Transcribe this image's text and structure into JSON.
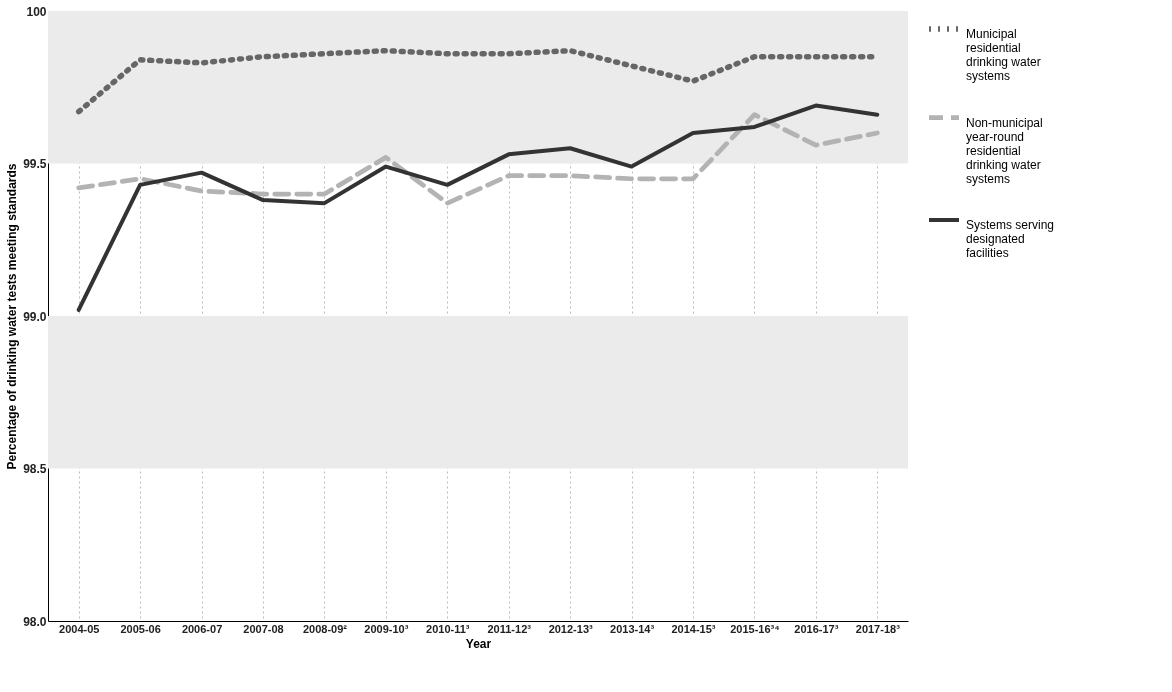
{
  "chart_data": {
    "type": "line",
    "categories": [
      "2004-05",
      "2005-06",
      "2006-07",
      "2007-08",
      "2008-09²",
      "2009-10³",
      "2010-11³",
      "2011-12³",
      "2012-13³",
      "2013-14³",
      "2014-15³",
      "2015-16³⁴",
      "2016-17³",
      "2017-18³"
    ],
    "series": [
      {
        "name": "Municipal residential drinking water systems",
        "color": "#666666",
        "line_style": "dotted",
        "values": [
          99.67,
          99.84,
          99.83,
          99.85,
          99.86,
          99.87,
          99.86,
          99.86,
          99.87,
          99.82,
          99.77,
          99.85,
          99.85,
          99.85
        ]
      },
      {
        "name": "Non-municipal year-round residential drinking water systems",
        "color": "#b3b3b3",
        "line_style": "dashed",
        "values": [
          99.42,
          99.45,
          99.41,
          99.4,
          99.4,
          99.52,
          99.37,
          99.46,
          99.46,
          99.45,
          99.45,
          99.66,
          99.56,
          99.6
        ]
      },
      {
        "name": "Systems serving designated facilities",
        "color": "#333333",
        "line_style": "solid",
        "values": [
          99.02,
          99.43,
          99.47,
          99.38,
          99.37,
          99.49,
          99.43,
          99.53,
          99.55,
          99.49,
          99.6,
          99.62,
          99.69,
          99.66
        ]
      }
    ],
    "xlabel": "Year",
    "ylabel": "Percentage of drinking water tests meeting standards",
    "ylim": [
      98.0,
      100
    ],
    "yticks": [
      {
        "value": 98.0,
        "label": "98.0"
      },
      98.5,
      {
        "value": 99.0,
        "label": "99.0"
      },
      99.5,
      100
    ],
    "bands": [
      {
        "axis": "y",
        "from": 99.5,
        "to": 100,
        "color": "#ebebeb"
      },
      {
        "axis": "y",
        "from": 98.5,
        "to": 99.0,
        "color": "#ebebeb"
      }
    ],
    "grid": "x",
    "legend": "right",
    "marker": "none"
  }
}
